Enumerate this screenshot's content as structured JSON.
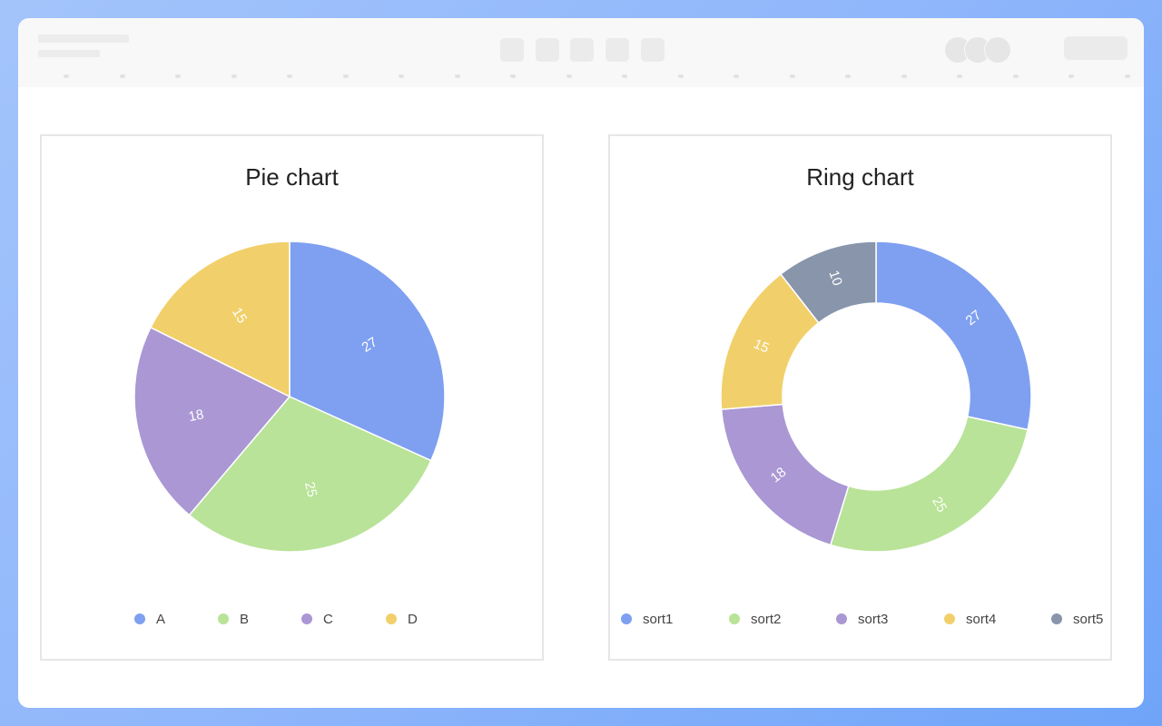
{
  "colors": {
    "blue": "#7fa0f1",
    "green": "#b9e398",
    "purple": "#aa97d4",
    "yellow": "#f1d06b",
    "slate": "#8895ab"
  },
  "chart_data": [
    {
      "type": "pie",
      "title": "Pie chart",
      "categories": [
        "A",
        "B",
        "C",
        "D"
      ],
      "values": [
        27,
        25,
        18,
        15
      ],
      "colors": [
        "#7fa0f1",
        "#b9e398",
        "#aa97d4",
        "#f1d06b"
      ],
      "legend": "bottom"
    },
    {
      "type": "pie",
      "variant": "ring",
      "title": "Ring chart",
      "categories": [
        "sort1",
        "sort2",
        "sort3",
        "sort4",
        "sort5"
      ],
      "values": [
        27,
        25,
        18,
        15,
        10
      ],
      "colors": [
        "#7fa0f1",
        "#b9e398",
        "#aa97d4",
        "#f1d06b",
        "#8895ab"
      ],
      "legend": "bottom"
    }
  ]
}
